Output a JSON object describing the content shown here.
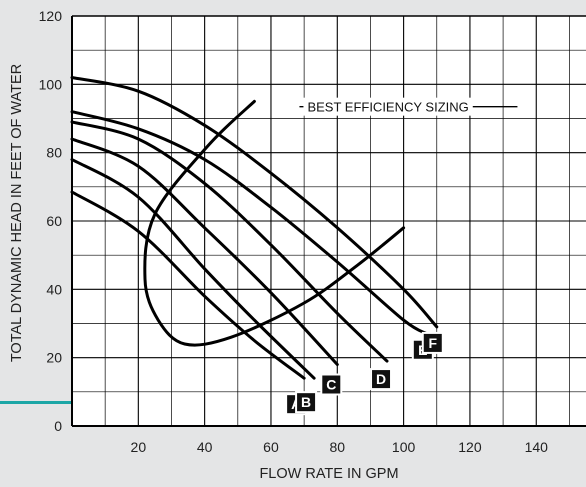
{
  "chart_data": {
    "type": "line",
    "xlabel": "FLOW RATE IN GPM",
    "ylabel": "TOTAL DYNAMIC HEAD IN FEET OF WATER",
    "xlim": [
      0,
      155
    ],
    "ylim": [
      0,
      120
    ],
    "x_ticks": [
      20,
      40,
      60,
      80,
      100,
      120,
      140
    ],
    "y_ticks": [
      0,
      20,
      40,
      60,
      80,
      100,
      120
    ],
    "grid": true,
    "accent_color": "#1ca6a6",
    "series": [
      {
        "name": "A",
        "x": [
          0,
          20,
          40,
          55,
          70
        ],
        "y": [
          68.5,
          57,
          38,
          25,
          14
        ]
      },
      {
        "name": "B",
        "x": [
          0,
          20,
          40,
          55,
          73
        ],
        "y": [
          78,
          67,
          46,
          31,
          14
        ]
      },
      {
        "name": "C",
        "x": [
          0,
          20,
          40,
          60,
          80
        ],
        "y": [
          84,
          76,
          58,
          39,
          18
        ]
      },
      {
        "name": "D",
        "x": [
          0,
          20,
          40,
          60,
          80,
          95
        ],
        "y": [
          89,
          84,
          71,
          53,
          33,
          19
        ]
      },
      {
        "name": "E",
        "x": [
          0,
          20,
          40,
          60,
          80,
          100,
          107
        ],
        "y": [
          92,
          87,
          78,
          64,
          48,
          31,
          27
        ]
      },
      {
        "name": "F",
        "x": [
          0,
          20,
          40,
          60,
          80,
          100,
          110
        ],
        "y": [
          102,
          98,
          88,
          74,
          58,
          40,
          29
        ]
      }
    ],
    "best_efficiency_curve": {
      "x": [
        55,
        41,
        25,
        22,
        26,
        34,
        48,
        70,
        86,
        100
      ],
      "y": [
        95,
        82,
        62,
        43,
        31,
        24,
        26,
        36,
        47,
        58
      ]
    },
    "annotations": [
      {
        "text": "BEST EFFICIENCY SIZING",
        "x": 71,
        "y": 92
      }
    ]
  }
}
